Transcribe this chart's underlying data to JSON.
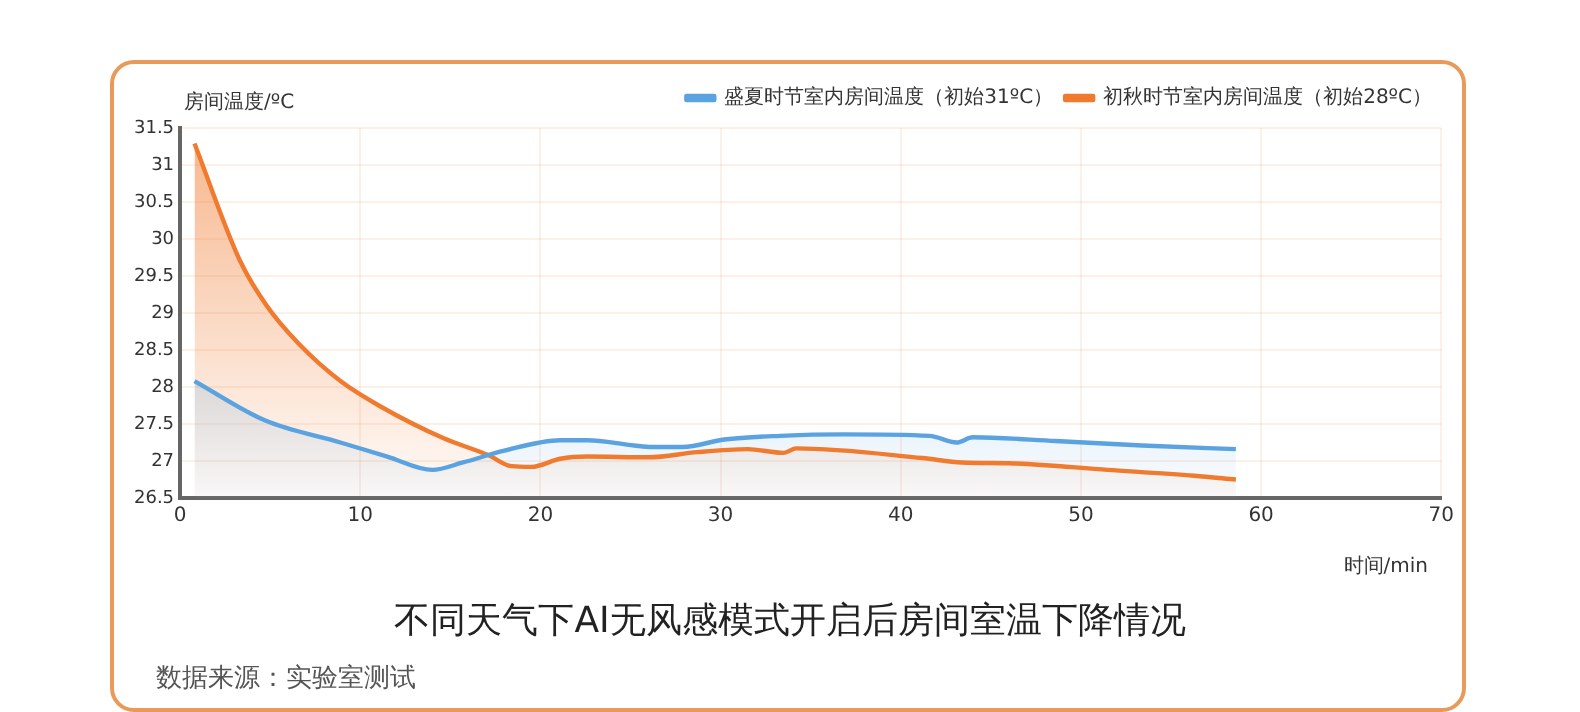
{
  "chart_data": {
    "type": "area",
    "title": "不同天气下AI无风感模式开启后房间室温下降情况",
    "xlabel": "时间/min",
    "ylabel": "房间温度/ºC",
    "annotations": [
      "数据来源：实验室测试"
    ],
    "xlim": [
      0,
      70
    ],
    "xticks": [
      0,
      10,
      20,
      30,
      40,
      50,
      60,
      70
    ],
    "ylim": [
      26.5,
      31.5
    ],
    "yticks": [
      26.5,
      27,
      27.5,
      28,
      28.5,
      29,
      29.5,
      30,
      30.5,
      31,
      31.5
    ],
    "grid": true,
    "legend": "top right",
    "marker": "none",
    "line_style": "solid",
    "series": [
      {
        "name": "盛夏时节室内房间温度（初始31ºC）",
        "color": "#5ba3e0",
        "x": [
          0.8,
          4.7,
          8.9,
          11.5,
          14.0,
          15.7,
          18.0,
          21.1,
          22.6,
          25.2,
          26.2,
          27.9,
          30.2,
          33.3,
          36.8,
          41.6,
          43.1,
          44.0,
          48.6,
          53.4,
          58.6
        ],
        "values": [
          28.08,
          27.55,
          27.25,
          27.06,
          26.88,
          26.98,
          27.14,
          27.28,
          27.28,
          27.21,
          27.19,
          27.19,
          27.29,
          27.34,
          27.36,
          27.34,
          27.25,
          27.32,
          27.27,
          27.21,
          27.16
        ]
      },
      {
        "name": "初秋时节室内房间温度（初始28ºC）",
        "color": "#f07a2e",
        "x": [
          0.8,
          3.3,
          4.8,
          6.6,
          8.9,
          11.1,
          14.6,
          17.1,
          18.4,
          19.5,
          21.1,
          22.6,
          26.0,
          28.7,
          31.5,
          33.5,
          34.2,
          41.2,
          43.4,
          46.0,
          51.5,
          56.3,
          58.6
        ],
        "values": [
          31.29,
          29.72,
          29.1,
          28.58,
          28.08,
          27.74,
          27.31,
          27.08,
          26.93,
          26.92,
          27.03,
          27.06,
          27.05,
          27.12,
          27.16,
          27.11,
          27.17,
          27.04,
          26.98,
          26.97,
          26.88,
          26.8,
          26.75
        ]
      }
    ]
  }
}
